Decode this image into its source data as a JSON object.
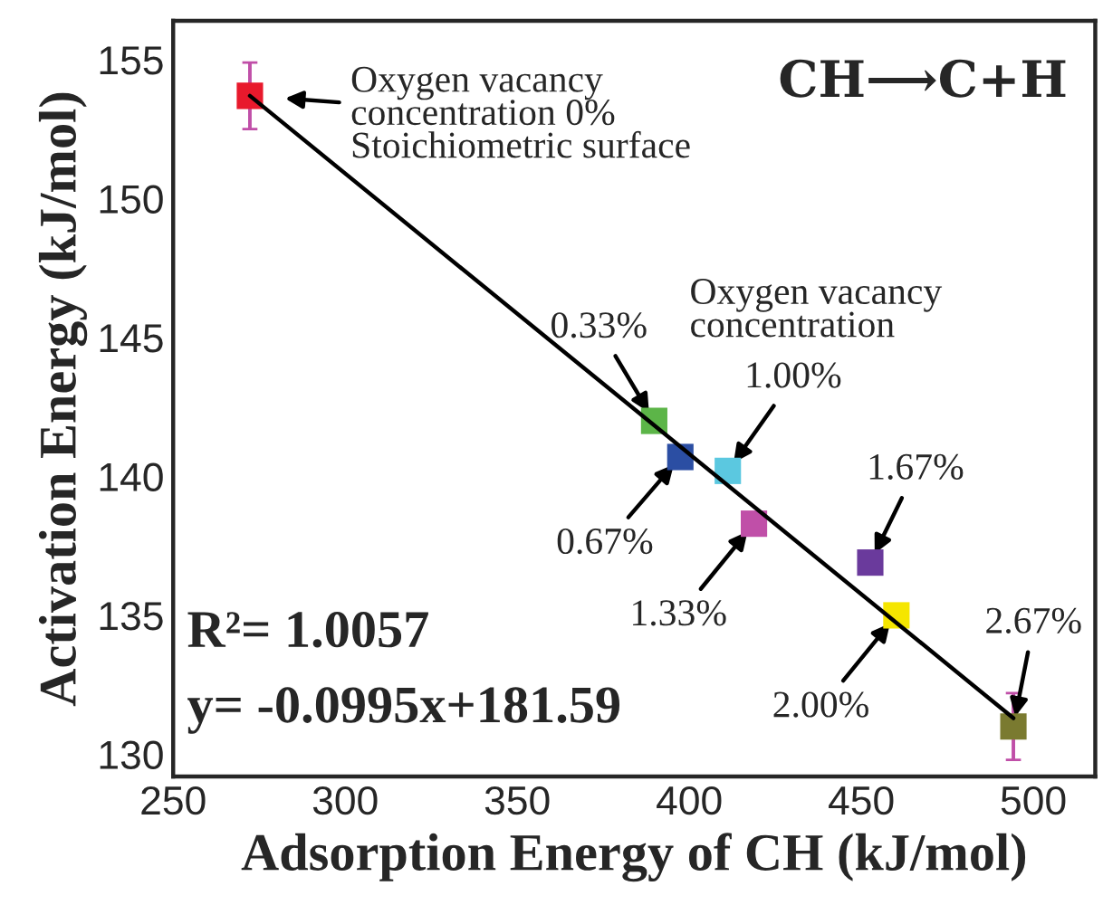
{
  "chart_data": {
    "type": "scatter",
    "xlabel": "Adsorption Energy of CH (kJ/mol)",
    "ylabel": "Activation Energy (kJ/mol)",
    "x": [
      272.3,
      389.8,
      397.4,
      411.2,
      418.8,
      452.6,
      460.2,
      494.2
    ],
    "series": [
      {
        "values": [
          153.7,
          142.0,
          140.7,
          140.2,
          138.3,
          136.9,
          135.0,
          131.0
        ],
        "colors": [
          "#e8192c",
          "#5cb548",
          "#2b4ea3",
          "#5bc8e0",
          "#c04fa8",
          "#6a3a9c",
          "#f5e600",
          "#7a7a30"
        ],
        "marker": "square",
        "errors": [
          1.2,
          null,
          null,
          null,
          null,
          null,
          null,
          1.2
        ]
      },
      {
        "type": "line",
        "x": [
          272.3,
          494.2
        ],
        "values": [
          153.7,
          131.3
        ],
        "color": "#000000",
        "line_style": "solid",
        "marker": "none"
      }
    ],
    "xlim": [
      250,
      518
    ],
    "ylim": [
      129.2,
      156.4
    ],
    "xticks": [
      250,
      300,
      350,
      400,
      450,
      500
    ],
    "yticks": [
      130,
      135,
      140,
      145,
      150,
      155
    ],
    "grid": false,
    "legend": false,
    "annotations": [
      {
        "text": "Oxygen vacancy\nconcentration 0%\nStoichiometric surface",
        "x": 272.3,
        "y": 153.7
      },
      "CH⟶C+H",
      "Oxygen vacancy\nconcentration",
      {
        "text": "0.33%",
        "x": 389.8,
        "y": 142.0
      },
      {
        "text": "0.67%",
        "x": 397.4,
        "y": 140.7
      },
      {
        "text": "1.00%",
        "x": 411.2,
        "y": 140.2
      },
      {
        "text": "1.33%",
        "x": 418.8,
        "y": 138.3
      },
      {
        "text": "1.67%",
        "x": 452.6,
        "y": 136.9
      },
      {
        "text": "2.00%",
        "x": 460.2,
        "y": 135.0
      },
      {
        "text": "2.67%",
        "x": 494.2,
        "y": 131.0
      },
      "R²= 1.0057",
      "y= -0.0995x+181.59"
    ]
  }
}
